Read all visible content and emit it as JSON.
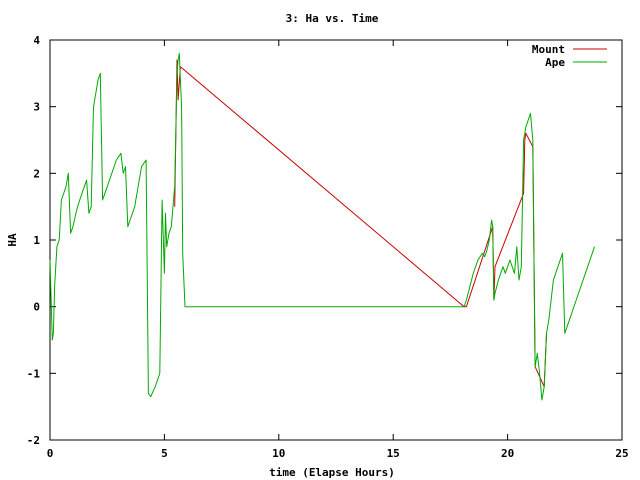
{
  "chart_data": {
    "type": "line",
    "title": "3: Ha vs. Time",
    "xlabel": "time (Elapse Hours)",
    "ylabel": "HA",
    "xlim": [
      0,
      25
    ],
    "ylim": [
      -2,
      4
    ],
    "xticks": [
      0,
      5,
      10,
      15,
      20,
      25
    ],
    "yticks": [
      -2,
      -1,
      0,
      1,
      2,
      3,
      4
    ],
    "grid": false,
    "legend": "top-right",
    "series": [
      {
        "name": "Mount",
        "color": "#cc0000",
        "x": [
          5.45,
          5.55,
          5.6,
          5.7,
          18.1,
          18.2,
          19.35,
          19.4,
          19.45,
          20.7,
          20.75,
          20.8,
          21.1,
          21.2,
          21.6,
          21.7
        ],
        "y": [
          1.5,
          3.7,
          3.1,
          3.6,
          0.0,
          0.0,
          1.2,
          0.1,
          0.6,
          1.7,
          2.5,
          2.6,
          2.4,
          -0.9,
          -1.2,
          -0.4
        ]
      },
      {
        "name": "Ape",
        "color": "#00aa00",
        "x": [
          0.0,
          0.1,
          0.15,
          0.2,
          0.3,
          0.4,
          0.5,
          0.6,
          0.7,
          0.8,
          0.9,
          1.0,
          1.2,
          1.4,
          1.6,
          1.7,
          1.8,
          1.9,
          2.0,
          2.1,
          2.2,
          2.3,
          2.4,
          2.5,
          2.7,
          2.9,
          3.1,
          3.2,
          3.3,
          3.4,
          3.5,
          3.7,
          4.0,
          4.2,
          4.3,
          4.4,
          4.6,
          4.8,
          4.9,
          5.0,
          5.05,
          5.1,
          5.2,
          5.3,
          5.45,
          5.55,
          5.6,
          5.65,
          5.7,
          5.75,
          5.8,
          5.9,
          18.1,
          18.2,
          18.5,
          18.7,
          18.9,
          19.0,
          19.1,
          19.2,
          19.3,
          19.35,
          19.4,
          19.45,
          19.6,
          19.8,
          19.9,
          20.0,
          20.1,
          20.2,
          20.3,
          20.4,
          20.5,
          20.6,
          20.7,
          20.75,
          20.8,
          21.0,
          21.1,
          21.2,
          21.3,
          21.4,
          21.5,
          21.6,
          21.7,
          21.8,
          22.0,
          22.2,
          22.4,
          22.5,
          22.6,
          23.0,
          23.4,
          23.8
        ],
        "y": [
          0.7,
          -0.5,
          -0.4,
          0.3,
          0.9,
          1.0,
          1.6,
          1.7,
          1.8,
          2.0,
          1.1,
          1.2,
          1.5,
          1.7,
          1.9,
          1.4,
          1.5,
          3.0,
          3.2,
          3.4,
          3.5,
          1.6,
          1.7,
          1.8,
          2.0,
          2.2,
          2.3,
          2.0,
          2.1,
          1.2,
          1.3,
          1.5,
          2.1,
          2.2,
          -1.3,
          -1.35,
          -1.2,
          -1.0,
          1.6,
          0.5,
          1.4,
          0.9,
          1.1,
          1.2,
          1.8,
          3.5,
          3.7,
          3.8,
          3.4,
          3.0,
          0.8,
          0.0,
          0.0,
          0.1,
          0.5,
          0.7,
          0.8,
          0.75,
          0.85,
          1.0,
          1.3,
          1.2,
          0.1,
          0.2,
          0.4,
          0.6,
          0.5,
          0.6,
          0.7,
          0.6,
          0.5,
          0.9,
          0.4,
          0.6,
          2.5,
          2.6,
          2.7,
          2.9,
          2.5,
          -0.9,
          -0.7,
          -1.0,
          -1.4,
          -1.2,
          -0.4,
          -0.2,
          0.4,
          0.6,
          0.8,
          -0.4,
          -0.3,
          0.1,
          0.5,
          0.9
        ]
      }
    ]
  }
}
